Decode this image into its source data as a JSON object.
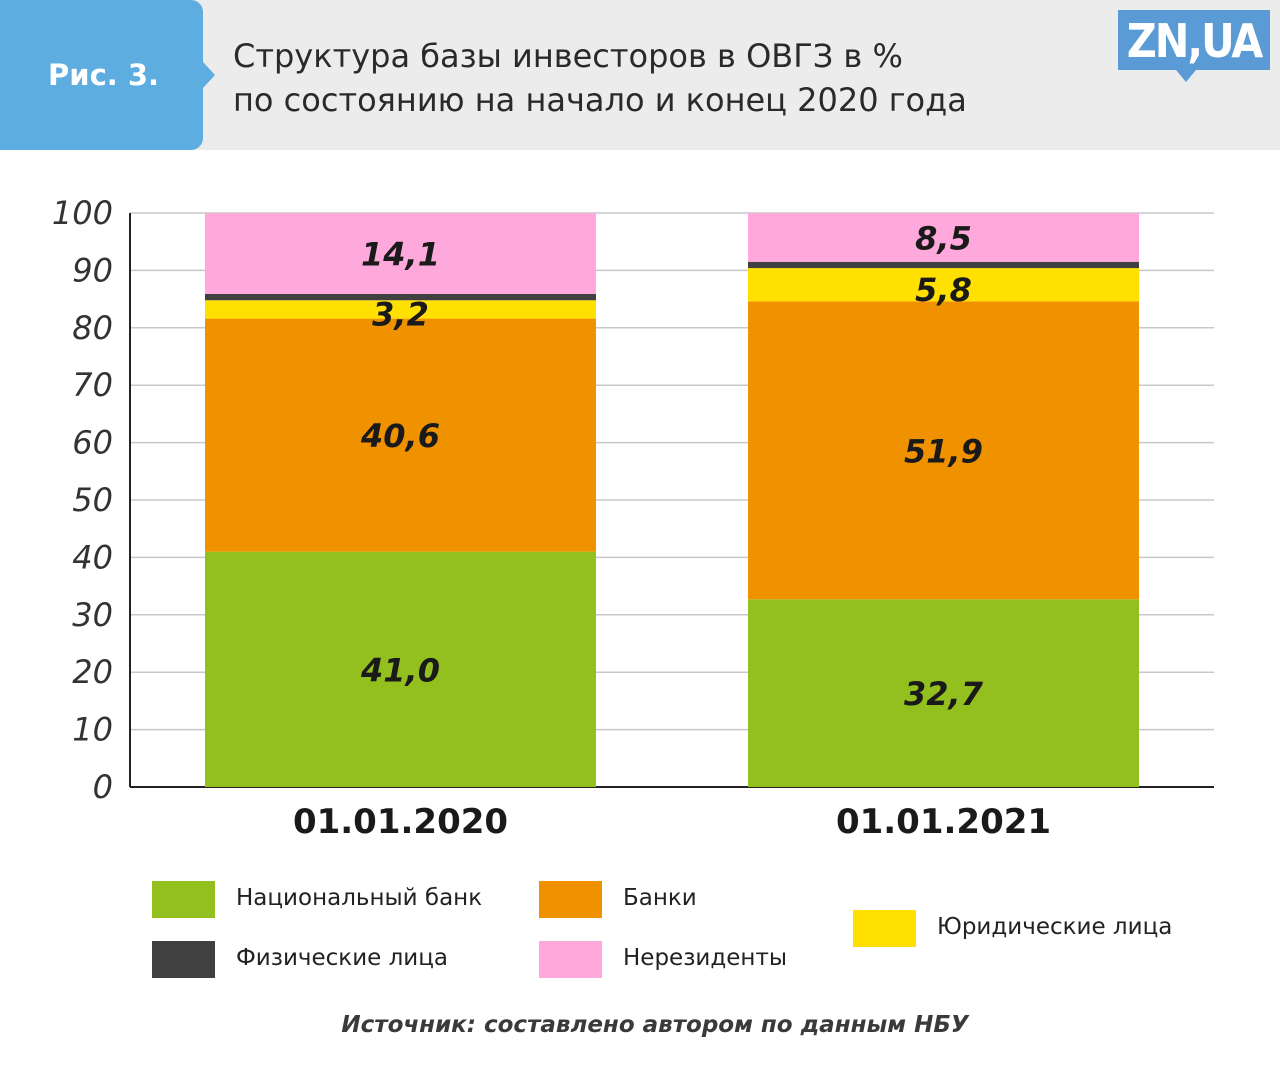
{
  "header": {
    "figure_label": "Рис. 3.",
    "title_line1": "Структура базы инвесторов в ОВГЗ в %",
    "title_line2": "по состоянию на начало и конец 2020 года",
    "logo": "ZN,UA"
  },
  "chart_data": {
    "type": "bar",
    "stacked": true,
    "title": "Структура базы инвесторов в ОВГЗ в % по состоянию на начало и конец 2020 года",
    "xlabel": "",
    "ylabel": "",
    "ylim": [
      0,
      100
    ],
    "yticks": [
      0,
      10,
      20,
      30,
      40,
      50,
      60,
      70,
      80,
      90,
      100
    ],
    "grid": true,
    "legend_position": "bottom",
    "categories": [
      "01.01.2020",
      "01.01.2021"
    ],
    "series": [
      {
        "name": "Национальный банк",
        "values": [
          41.0,
          32.7
        ],
        "labels": [
          "41,0",
          "32,7"
        ],
        "color": "#93c01f"
      },
      {
        "name": "Банки",
        "values": [
          40.6,
          51.9
        ],
        "labels": [
          "40,6",
          "51,9"
        ],
        "color": "#f09200"
      },
      {
        "name": "Юридические лица",
        "values": [
          3.2,
          5.8
        ],
        "labels": [
          "3,2",
          "5,8"
        ],
        "color": "#ffe000"
      },
      {
        "name": "Физические лица",
        "values": [
          1.1,
          1.1
        ],
        "labels": [
          "",
          ""
        ],
        "color": "#404040"
      },
      {
        "name": "Нерезиденты",
        "values": [
          14.1,
          8.5
        ],
        "labels": [
          "14,1",
          "8,5"
        ],
        "color": "#ffa8dc"
      }
    ]
  },
  "legend": {
    "national_bank": "Национальный банк",
    "banks": "Банки",
    "legal_entities": "Юридические лица",
    "individuals": "Физические лица",
    "non_residents": "Нерезиденты"
  },
  "source": "Источник: составлено автором по данным НБУ"
}
